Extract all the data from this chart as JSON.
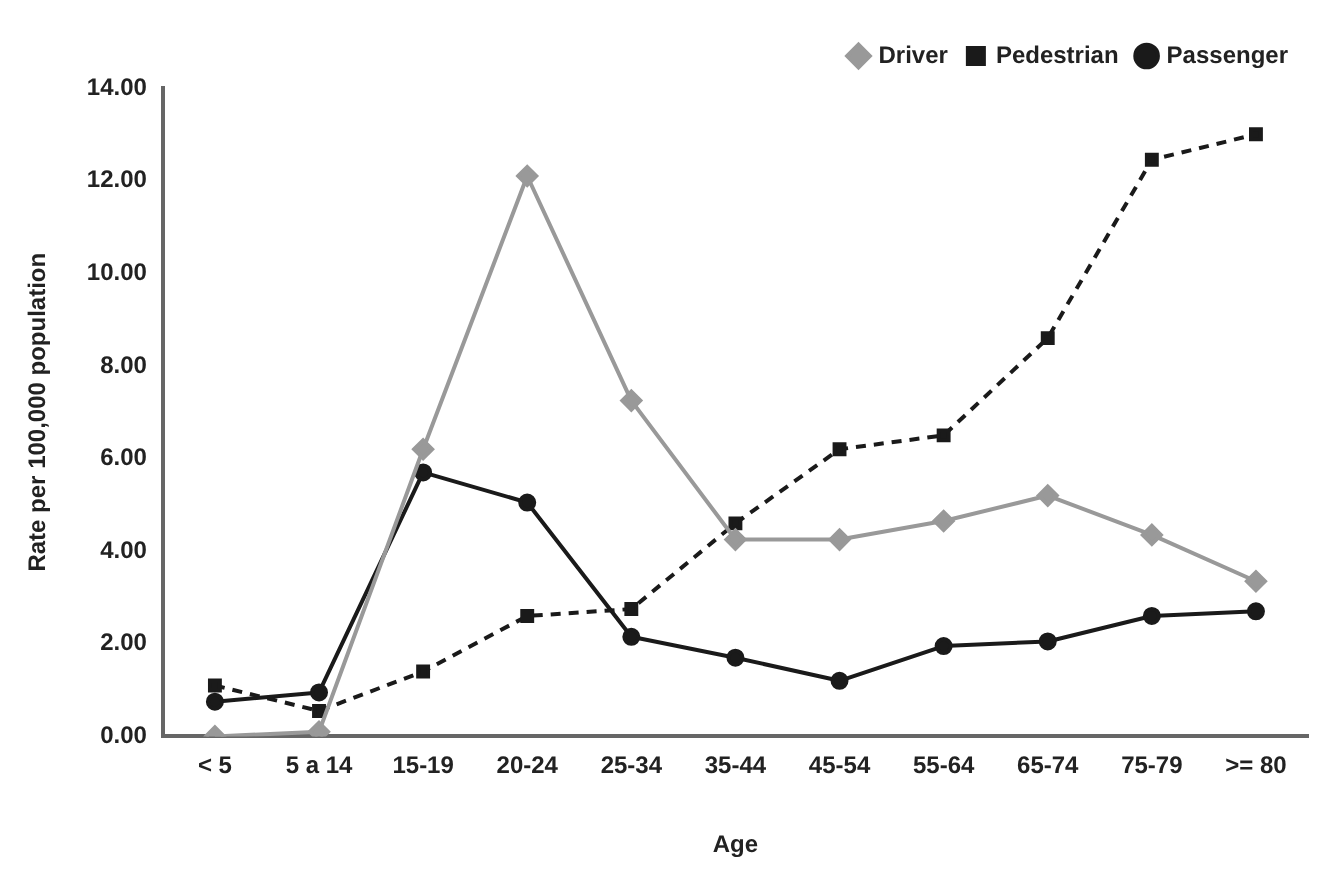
{
  "chart_data": {
    "type": "line",
    "xlabel": "Age",
    "ylabel": "Rate per 100,000 population",
    "categories": [
      "< 5",
      "5 a 14",
      "15-19",
      "20-24",
      "25-34",
      "35-44",
      "45-54",
      "55-64",
      "65-74",
      "75-79",
      ">= 80"
    ],
    "series": [
      {
        "name": "Driver",
        "color": "#999999",
        "marker": "diamond",
        "line_style": "solid",
        "values": [
          0,
          0.1,
          6.2,
          12.1,
          7.25,
          4.25,
          4.25,
          4.65,
          5.2,
          4.35,
          3.35
        ]
      },
      {
        "name": "Pedestrian",
        "color": "#1a1a1a",
        "marker": "square",
        "line_style": "dashed",
        "values": [
          1.1,
          0.55,
          1.4,
          2.6,
          2.75,
          4.6,
          6.2,
          6.5,
          8.6,
          12.45,
          13.0
        ]
      },
      {
        "name": "Passenger",
        "color": "#1a1a1a",
        "marker": "circle",
        "line_style": "solid",
        "values": [
          0.75,
          0.95,
          5.7,
          5.05,
          2.15,
          1.7,
          1.2,
          1.95,
          2.05,
          2.6,
          2.7
        ]
      }
    ],
    "ylim": [
      0,
      14
    ],
    "yticks": [
      {
        "value": 0,
        "label": "0.00"
      },
      {
        "value": 2,
        "label": "2.00"
      },
      {
        "value": 4,
        "label": "4.00"
      },
      {
        "value": 6,
        "label": "6.00"
      },
      {
        "value": 8,
        "label": "8.00"
      },
      {
        "value": 10,
        "label": "10.00"
      },
      {
        "value": 12,
        "label": "12.00"
      },
      {
        "value": 14,
        "label": "14.00"
      }
    ],
    "grid": false,
    "legend": "top right"
  }
}
